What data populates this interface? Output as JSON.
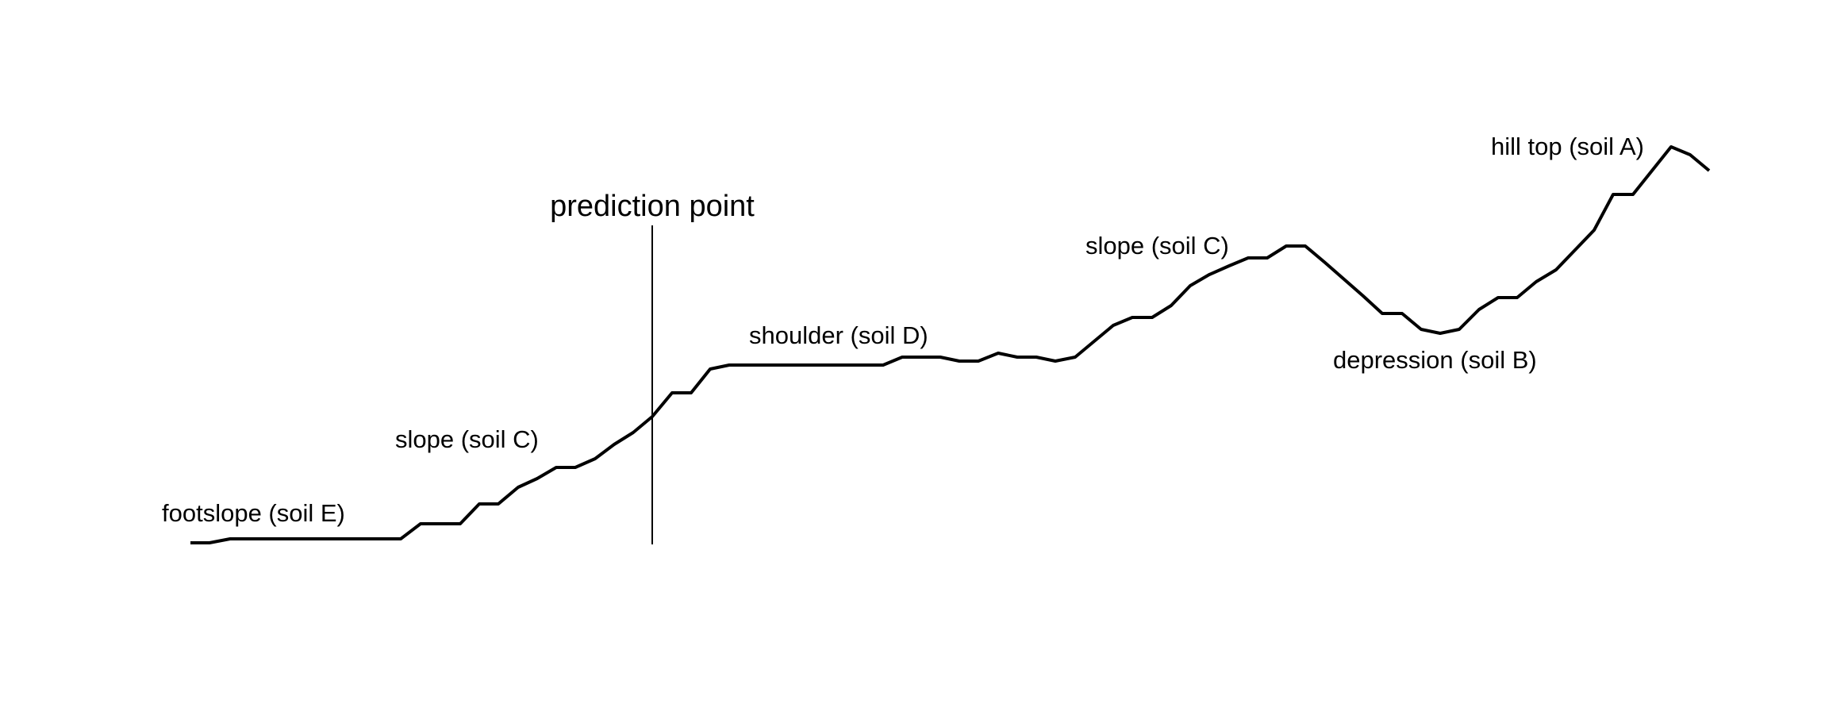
{
  "diagram": {
    "marker_label": "prediction point",
    "landform_labels": {
      "footslope": "footslope (soil E)",
      "slope_lower": "slope (soil C)",
      "shoulder": "shoulder (soil D)",
      "slope_upper": "slope (soil C)",
      "depression": "depression (soil B)",
      "hill_top": "hill top (soil A)"
    },
    "colors": {
      "line": "#000000",
      "background": "#ffffff"
    }
  }
}
